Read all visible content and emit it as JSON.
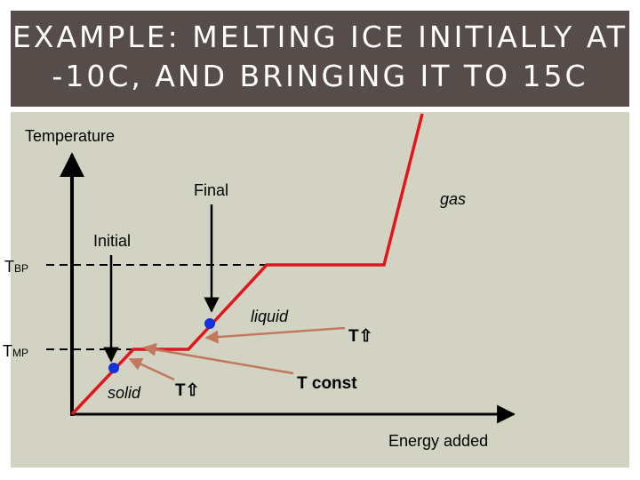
{
  "slide": {
    "title": "EXAMPLE: MELTING ICE INITIALLY AT -10C, AND BRINGING IT TO 15C"
  },
  "diagram": {
    "y_axis_label": "Temperature",
    "x_axis_label": "Energy added",
    "boiling_point": {
      "main": "T",
      "sub": "BP"
    },
    "melting_point": {
      "main": "T",
      "sub": "MP"
    },
    "phases": {
      "solid": "solid",
      "liquid": "liquid",
      "gas": "gas"
    },
    "markers": {
      "initial": "Initial",
      "final": "Final"
    },
    "annotations": {
      "temp_rise_a": "T⇧",
      "temp_rise_b": "T⇧",
      "temp_const": "T const"
    },
    "colors": {
      "curve": "#e0161c",
      "arrow": "#c0795f",
      "dot": "#1133dd",
      "panel": "#d3d3c3",
      "title_bar": "#564c49"
    }
  }
}
